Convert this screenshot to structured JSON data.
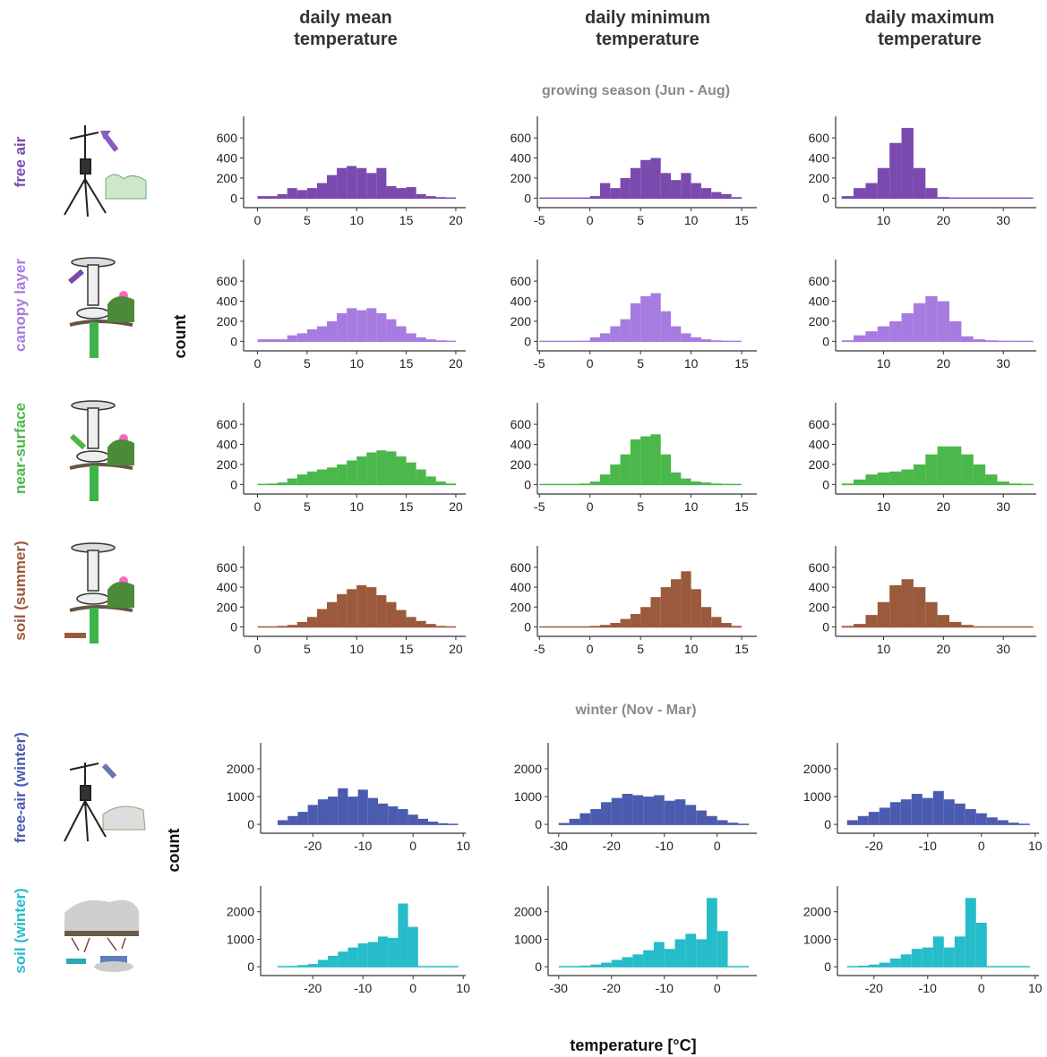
{
  "figure": {
    "column_titles": [
      "daily mean temperature",
      "daily minimum temperature",
      "daily maximum temperature"
    ],
    "section_titles": [
      "growing season (Jun - Aug)",
      "winter (Nov - Mar)"
    ],
    "row_labels": [
      "free air",
      "canopy layer",
      "near-surface",
      "soil (summer)",
      "free-air (winter)",
      "soil (winter)"
    ],
    "y_label": "count",
    "x_label": "temperature [°C]"
  },
  "chart_data": [
    {
      "type": "histogram",
      "color": "#7b4aae",
      "bins": [
        0,
        1,
        2,
        3,
        4,
        5,
        6,
        7,
        8,
        9,
        10,
        11,
        12,
        13,
        14,
        15,
        16,
        17,
        18,
        19,
        20
      ],
      "values": [
        20,
        20,
        40,
        100,
        80,
        100,
        150,
        230,
        300,
        320,
        300,
        250,
        300,
        120,
        100,
        110,
        40,
        20,
        10,
        5
      ],
      "xlim": [
        -1.4,
        21
      ],
      "xticks": [
        0,
        5,
        10,
        15,
        20
      ],
      "ylim": [
        -95,
        815
      ],
      "yticks": [
        0,
        200,
        400,
        600
      ]
    },
    {
      "type": "histogram",
      "color": "#7b4aae",
      "bins": [
        -5,
        -4,
        -3,
        -2,
        -1,
        0,
        1,
        2,
        3,
        4,
        5,
        6,
        7,
        8,
        9,
        10,
        11,
        12,
        13,
        14,
        15
      ],
      "values": [
        0,
        0,
        0,
        0,
        0,
        20,
        150,
        100,
        200,
        300,
        380,
        400,
        250,
        180,
        250,
        150,
        100,
        60,
        40,
        10
      ],
      "xlim": [
        -5.2,
        16.5
      ],
      "xticks": [
        -5,
        0,
        5,
        10,
        15
      ],
      "ylim": [
        -95,
        815
      ],
      "yticks": [
        0,
        200,
        400,
        600
      ]
    },
    {
      "type": "histogram",
      "color": "#7b4aae",
      "bins": [
        3,
        5,
        7,
        9,
        11,
        13,
        15,
        17,
        19,
        21,
        23,
        25,
        27,
        29,
        31,
        33,
        35
      ],
      "values": [
        20,
        100,
        150,
        300,
        550,
        700,
        300,
        100,
        10,
        0,
        0,
        0,
        0,
        0,
        0,
        0
      ],
      "xlim": [
        2,
        35.5
      ],
      "xticks": [
        10,
        20,
        30
      ],
      "ylim": [
        -95,
        815
      ],
      "yticks": [
        0,
        200,
        400,
        600
      ]
    },
    {
      "type": "histogram",
      "color": "#a77ce0",
      "bins": [
        0,
        1,
        2,
        3,
        4,
        5,
        6,
        7,
        8,
        9,
        10,
        11,
        12,
        13,
        14,
        15,
        16,
        17,
        18,
        19,
        20
      ],
      "values": [
        20,
        20,
        20,
        60,
        80,
        120,
        150,
        200,
        280,
        330,
        310,
        330,
        280,
        220,
        150,
        80,
        40,
        20,
        10,
        5
      ],
      "xlim": [
        -1.4,
        21
      ],
      "xticks": [
        0,
        5,
        10,
        15,
        20
      ],
      "ylim": [
        -95,
        815
      ],
      "yticks": [
        0,
        200,
        400,
        600
      ]
    },
    {
      "type": "histogram",
      "color": "#a77ce0",
      "bins": [
        -5,
        -4,
        -3,
        -2,
        -1,
        0,
        1,
        2,
        3,
        4,
        5,
        6,
        7,
        8,
        9,
        10,
        11,
        12,
        13,
        14,
        15
      ],
      "values": [
        0,
        0,
        0,
        0,
        5,
        40,
        80,
        150,
        220,
        380,
        450,
        480,
        300,
        150,
        80,
        40,
        20,
        10,
        5,
        0
      ],
      "xlim": [
        -5.2,
        16.5
      ],
      "xticks": [
        -5,
        0,
        5,
        10,
        15
      ],
      "ylim": [
        -95,
        815
      ],
      "yticks": [
        0,
        200,
        400,
        600
      ]
    },
    {
      "type": "histogram",
      "color": "#a77ce0",
      "bins": [
        3,
        5,
        7,
        9,
        11,
        13,
        15,
        17,
        19,
        21,
        23,
        25,
        27,
        29,
        31,
        33,
        35
      ],
      "values": [
        10,
        60,
        100,
        150,
        200,
        280,
        380,
        450,
        400,
        200,
        50,
        20,
        10,
        5,
        0,
        0
      ],
      "xlim": [
        2,
        35.5
      ],
      "xticks": [
        10,
        20,
        30
      ],
      "ylim": [
        -95,
        815
      ],
      "yticks": [
        0,
        200,
        400,
        600
      ]
    },
    {
      "type": "histogram",
      "color": "#4ab84a",
      "bins": [
        0,
        1,
        2,
        3,
        4,
        5,
        6,
        7,
        8,
        9,
        10,
        11,
        12,
        13,
        14,
        15,
        16,
        17,
        18,
        19,
        20
      ],
      "values": [
        5,
        10,
        20,
        60,
        100,
        130,
        150,
        170,
        200,
        240,
        280,
        320,
        340,
        330,
        280,
        220,
        150,
        80,
        30,
        10
      ],
      "xlim": [
        -1.4,
        21
      ],
      "xticks": [
        0,
        5,
        10,
        15,
        20
      ],
      "ylim": [
        -95,
        815
      ],
      "yticks": [
        0,
        200,
        400,
        600
      ]
    },
    {
      "type": "histogram",
      "color": "#4ab84a",
      "bins": [
        -5,
        -4,
        -3,
        -2,
        -1,
        0,
        1,
        2,
        3,
        4,
        5,
        6,
        7,
        8,
        9,
        10,
        11,
        12,
        13,
        14,
        15
      ],
      "values": [
        0,
        0,
        0,
        5,
        10,
        30,
        100,
        200,
        300,
        450,
        480,
        500,
        300,
        120,
        60,
        30,
        20,
        10,
        5,
        0
      ],
      "xlim": [
        -5.2,
        16.5
      ],
      "xticks": [
        -5,
        0,
        5,
        10,
        15
      ],
      "ylim": [
        -95,
        815
      ],
      "yticks": [
        0,
        200,
        400,
        600
      ]
    },
    {
      "type": "histogram",
      "color": "#4ab84a",
      "bins": [
        3,
        5,
        7,
        9,
        11,
        13,
        15,
        17,
        19,
        21,
        23,
        25,
        27,
        29,
        31,
        33,
        35
      ],
      "values": [
        10,
        50,
        100,
        120,
        130,
        150,
        200,
        300,
        380,
        380,
        300,
        200,
        100,
        30,
        10,
        5
      ],
      "xlim": [
        2,
        35.5
      ],
      "xticks": [
        10,
        20,
        30
      ],
      "ylim": [
        -95,
        815
      ],
      "yticks": [
        0,
        200,
        400,
        600
      ]
    },
    {
      "type": "histogram",
      "color": "#9a5a3b",
      "bins": [
        0,
        1,
        2,
        3,
        4,
        5,
        6,
        7,
        8,
        9,
        10,
        11,
        12,
        13,
        14,
        15,
        16,
        17,
        18,
        19,
        20
      ],
      "values": [
        0,
        0,
        10,
        20,
        50,
        100,
        180,
        250,
        330,
        380,
        420,
        400,
        320,
        250,
        170,
        100,
        60,
        30,
        10,
        5
      ],
      "xlim": [
        -1.4,
        21
      ],
      "xticks": [
        0,
        5,
        10,
        15,
        20
      ],
      "ylim": [
        -95,
        815
      ],
      "yticks": [
        0,
        200,
        400,
        600
      ]
    },
    {
      "type": "histogram",
      "color": "#9a5a3b",
      "bins": [
        -5,
        -4,
        -3,
        -2,
        -1,
        0,
        1,
        2,
        3,
        4,
        5,
        6,
        7,
        8,
        9,
        10,
        11,
        12,
        13,
        14,
        15
      ],
      "values": [
        0,
        0,
        0,
        0,
        0,
        10,
        20,
        40,
        80,
        130,
        200,
        300,
        400,
        480,
        560,
        380,
        200,
        100,
        40,
        10
      ],
      "xlim": [
        -5.2,
        16.5
      ],
      "xticks": [
        -5,
        0,
        5,
        10,
        15
      ],
      "ylim": [
        -95,
        815
      ],
      "yticks": [
        0,
        200,
        400,
        600
      ]
    },
    {
      "type": "histogram",
      "color": "#9a5a3b",
      "bins": [
        3,
        5,
        7,
        9,
        11,
        13,
        15,
        17,
        19,
        21,
        23,
        25,
        27,
        29,
        31,
        33,
        35
      ],
      "values": [
        10,
        30,
        120,
        250,
        420,
        480,
        400,
        250,
        120,
        50,
        20,
        5,
        0,
        0,
        0,
        0
      ],
      "xlim": [
        2,
        35.5
      ],
      "xticks": [
        10,
        20,
        30
      ],
      "ylim": [
        -95,
        815
      ],
      "yticks": [
        0,
        200,
        400,
        600
      ]
    },
    {
      "type": "histogram",
      "color": "#4b5cb0",
      "bins": [
        -27,
        -25,
        -23,
        -21,
        -19,
        -17,
        -15,
        -13,
        -11,
        -9,
        -7,
        -5,
        -3,
        -1,
        1,
        3,
        5,
        7,
        9
      ],
      "values": [
        150,
        300,
        450,
        700,
        900,
        1000,
        1300,
        1000,
        1250,
        950,
        750,
        650,
        550,
        350,
        200,
        100,
        40,
        10
      ],
      "xlim": [
        -30.4,
        10.5
      ],
      "xticks": [
        -20,
        -10,
        0,
        10
      ],
      "ylim": [
        -320,
        2935
      ],
      "yticks": [
        0,
        1000,
        2000
      ]
    },
    {
      "type": "histogram",
      "color": "#4b5cb0",
      "bins": [
        -30,
        -28,
        -26,
        -24,
        -22,
        -20,
        -18,
        -16,
        -14,
        -12,
        -10,
        -8,
        -6,
        -4,
        -2,
        0,
        2,
        4,
        6
      ],
      "values": [
        50,
        200,
        400,
        550,
        800,
        950,
        1100,
        1050,
        1000,
        1050,
        850,
        900,
        700,
        500,
        300,
        150,
        60,
        20
      ],
      "xlim": [
        -32,
        7.5
      ],
      "xticks": [
        -30,
        -20,
        -10,
        0
      ],
      "ylim": [
        -320,
        2935
      ],
      "yticks": [
        0,
        1000,
        2000
      ]
    },
    {
      "type": "histogram",
      "color": "#4b5cb0",
      "bins": [
        -25,
        -23,
        -21,
        -19,
        -17,
        -15,
        -13,
        -11,
        -9,
        -7,
        -5,
        -3,
        -1,
        1,
        3,
        5,
        7,
        9
      ],
      "values": [
        150,
        300,
        450,
        600,
        800,
        900,
        1100,
        950,
        1200,
        900,
        750,
        550,
        400,
        250,
        150,
        60,
        20
      ],
      "xlim": [
        -26.8,
        10.7
      ],
      "xticks": [
        -20,
        -10,
        0,
        10
      ],
      "ylim": [
        -320,
        2935
      ],
      "yticks": [
        0,
        1000,
        2000
      ]
    },
    {
      "type": "histogram",
      "color": "#26bcc9",
      "bins": [
        -27,
        -25,
        -23,
        -21,
        -19,
        -17,
        -15,
        -13,
        -11,
        -9,
        -7,
        -5,
        -3,
        -1,
        1,
        3,
        5,
        7,
        9
      ],
      "values": [
        20,
        30,
        60,
        100,
        250,
        400,
        550,
        700,
        850,
        900,
        1100,
        1050,
        2300,
        1450,
        0,
        0,
        0,
        0
      ],
      "xlim": [
        -30.4,
        10.5
      ],
      "xticks": [
        -20,
        -10,
        0,
        10
      ],
      "ylim": [
        -320,
        2935
      ],
      "yticks": [
        0,
        1000,
        2000
      ]
    },
    {
      "type": "histogram",
      "color": "#26bcc9",
      "bins": [
        -30,
        -28,
        -26,
        -24,
        -22,
        -20,
        -18,
        -16,
        -14,
        -12,
        -10,
        -8,
        -6,
        -4,
        -2,
        0,
        2,
        4,
        6
      ],
      "values": [
        10,
        20,
        40,
        80,
        150,
        250,
        350,
        450,
        600,
        900,
        650,
        1000,
        1200,
        1000,
        2500,
        1300,
        0,
        0
      ],
      "xlim": [
        -32,
        7.5
      ],
      "xticks": [
        -30,
        -20,
        -10,
        0
      ],
      "ylim": [
        -320,
        2935
      ],
      "yticks": [
        0,
        1000,
        2000
      ]
    },
    {
      "type": "histogram",
      "color": "#26bcc9",
      "bins": [
        -25,
        -23,
        -21,
        -19,
        -17,
        -15,
        -13,
        -11,
        -9,
        -7,
        -5,
        -3,
        -1,
        1,
        3,
        5,
        7,
        9
      ],
      "values": [
        20,
        40,
        80,
        150,
        300,
        450,
        650,
        700,
        1100,
        700,
        1100,
        2500,
        1600,
        0,
        0,
        0,
        0
      ],
      "xlim": [
        -26.8,
        10.7
      ],
      "xticks": [
        -20,
        -10,
        0,
        10
      ],
      "ylim": [
        -320,
        2935
      ],
      "yticks": [
        0,
        1000,
        2000
      ]
    }
  ]
}
